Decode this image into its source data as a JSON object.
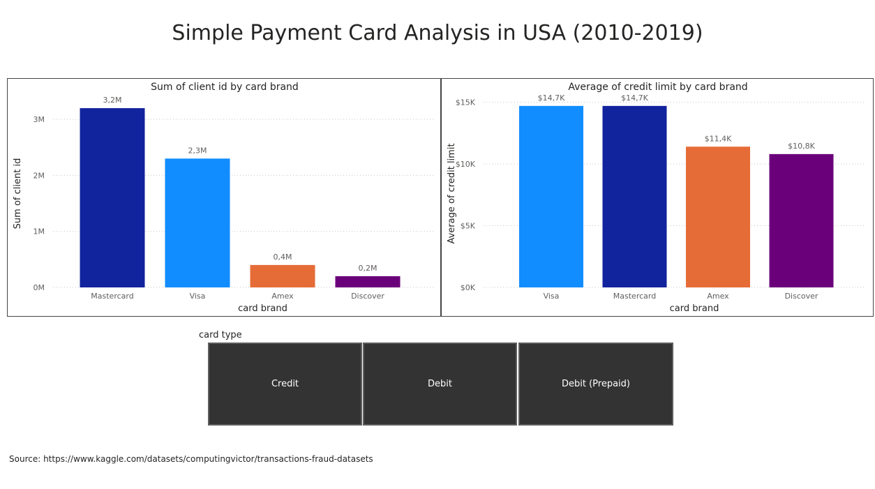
{
  "report": {
    "title": "Simple Payment Card Analysis in USA (2010-2019)",
    "source": "Source: https://www.kaggle.com/datasets/computingvictor/transactions-fraud-datasets"
  },
  "slicer": {
    "header": "card type",
    "options": [
      "Credit",
      "Debit",
      "Debit (Prepaid)"
    ]
  },
  "chart_data": [
    {
      "type": "bar",
      "title": "Sum of client id by card brand",
      "xlabel": "card brand",
      "ylabel": "Sum of client id",
      "categories": [
        "Mastercard",
        "Visa",
        "Amex",
        "Discover"
      ],
      "values": [
        3.2,
        2.3,
        0.4,
        0.2
      ],
      "data_labels": [
        "3,2M",
        "2,3M",
        "0,4M",
        "0,2M"
      ],
      "colors": [
        "#12239E",
        "#118DFF",
        "#E66C37",
        "#6B007B"
      ],
      "yticks": [
        0,
        1,
        2,
        3
      ],
      "ytick_labels": [
        "0M",
        "1M",
        "2M",
        "3M"
      ],
      "ylim": [
        0,
        3.35
      ],
      "grid": true
    },
    {
      "type": "bar",
      "title": "Average of credit limit by card brand",
      "xlabel": "card brand",
      "ylabel": "Average of credit limit",
      "categories": [
        "Visa",
        "Mastercard",
        "Amex",
        "Discover"
      ],
      "values": [
        14.7,
        14.7,
        11.4,
        10.8
      ],
      "data_labels": [
        "$14,7K",
        "$14,7K",
        "$11,4K",
        "$10,8K"
      ],
      "colors": [
        "#118DFF",
        "#12239E",
        "#E66C37",
        "#6B007B"
      ],
      "yticks": [
        0,
        5,
        10,
        15
      ],
      "ytick_labels": [
        "$0K",
        "$5K",
        "$10K",
        "$15K"
      ],
      "ylim": [
        0,
        15.2
      ],
      "grid": true
    }
  ]
}
